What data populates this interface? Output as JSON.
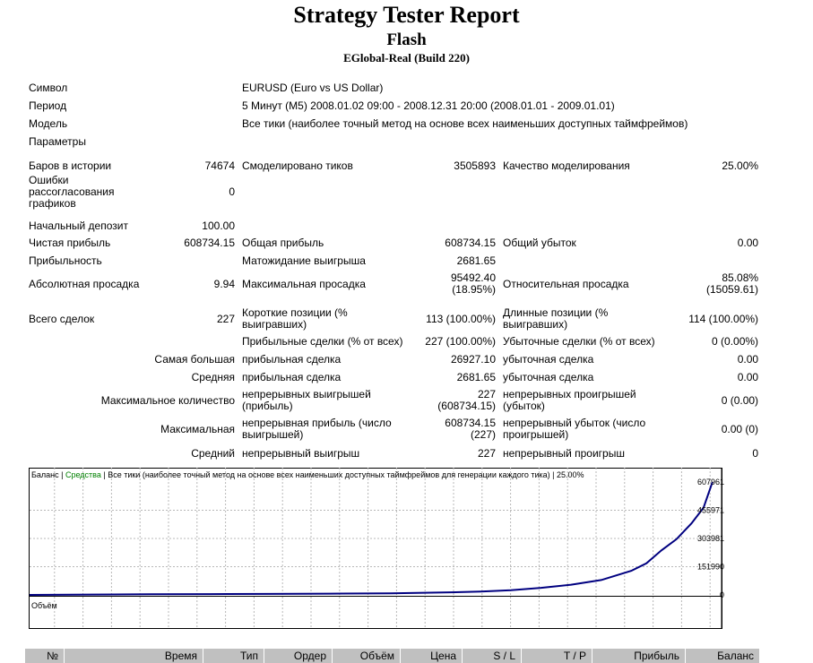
{
  "header": {
    "title": "Strategy Tester Report",
    "expert": "Flash",
    "server": "EGlobal-Real (Build 220)"
  },
  "summary": {
    "symbol_label": "Символ",
    "symbol": "EURUSD (Euro vs US Dollar)",
    "period_label": "Период",
    "period": "5 Минут (M5) 2008.01.02 09:00 - 2008.12.31 20:00 (2008.01.01 - 2009.01.01)",
    "model_label": "Модель",
    "model": "Все тики (наиболее точный метод на основе всех наименьших доступных таймфреймов)",
    "params_label": "Параметры"
  },
  "stats": {
    "bars_label": "Баров в истории",
    "bars": "74674",
    "ticks_label": "Смоделировано тиков",
    "ticks": "3505893",
    "quality_label": "Качество моделирования",
    "quality": "25.00%",
    "mismatch_label": "Ошибки рассогласования графиков",
    "mismatch": "0",
    "deposit_label": "Начальный депозит",
    "deposit": "100.00",
    "net_label": "Чистая прибыль",
    "net": "608734.15",
    "gross_profit_label": "Общая прибыль",
    "gross_profit": "608734.15",
    "gross_loss_label": "Общий убыток",
    "gross_loss": "0.00",
    "pf_label": "Прибыльность",
    "payoff_label": "Матожидание выигрыша",
    "payoff": "2681.65",
    "abs_dd_label": "Абсолютная просадка",
    "abs_dd": "9.94",
    "max_dd_label": "Максимальная просадка",
    "max_dd": "95492.40",
    "max_dd_pct": "(18.95%)",
    "rel_dd_label": "Относительная просадка",
    "rel_dd": "85.08%",
    "rel_dd_abs": "(15059.61)",
    "trades_label": "Всего сделок",
    "trades": "227",
    "short_label": "Короткие позиции (% выигравших)",
    "short": "113 (100.00%)",
    "long_label": "Длинные позиции (% выигравших)",
    "long": "114 (100.00%)",
    "profit_trades_label": "Прибыльные сделки (% от всех)",
    "profit_trades": "227 (100.00%)",
    "loss_trades_label": "Убыточные сделки (% от всех)",
    "loss_trades": "0 (0.00%)",
    "largest_label": "Самая большая",
    "largest_profit_label": "прибыльная сделка",
    "largest_profit": "26927.10",
    "largest_loss_label": "убыточная сделка",
    "largest_loss": "0.00",
    "average_label": "Средняя",
    "avg_profit_label": "прибыльная сделка",
    "avg_profit": "2681.65",
    "avg_loss_label": "убыточная сделка",
    "avg_loss": "0.00",
    "max_count_label": "Максимальное количество",
    "cons_wins_label": "непрерывных выигрышей (прибыль)",
    "cons_wins": "227 (608734.15)",
    "cons_losses_label": "непрерывных проигрышей (убыток)",
    "cons_losses": "0 (0.00)",
    "maximal_label": "Максимальная",
    "cons_profit_label": "непрерывная прибыль (число выигрышей)",
    "cons_profit": "608734.15 (227)",
    "cons_loss_label": "непрерывный убыток (число проигрышей)",
    "cons_loss": "0.00 (0)",
    "avg2_label": "Средний",
    "avg_wins_label": "непрерывный выигрыш",
    "avg_wins": "227",
    "avg_losses_label": "непрерывный проигрыш",
    "avg_losses": "0"
  },
  "chart_data": {
    "type": "line",
    "legend_balance": "Баланс",
    "legend_sep": " | ",
    "legend_equity": "Средства",
    "legend_rest": " | Все тики (наиболее точный метод на основе всех наименьших доступных таймфреймов для генерации каждого тика) | 25.00%",
    "volume_label": "Объём",
    "y_ticks": [
      "607961",
      "455971",
      "303981",
      "151990",
      "0"
    ],
    "x_ticks": [
      "0",
      "11",
      "20",
      "29",
      "39",
      "48",
      "58",
      "67",
      "77",
      "86",
      "95",
      "105",
      "114",
      "124",
      "133",
      "143",
      "152",
      "161",
      "171",
      "180",
      "190",
      "199",
      "208",
      "218",
      "227"
    ],
    "ylim": [
      0,
      607961
    ],
    "xlim": [
      0,
      230
    ],
    "balance_color": "#000080",
    "equity_color": "#008000",
    "series": [
      {
        "name": "Баланс",
        "x": [
          0,
          20,
          40,
          60,
          80,
          100,
          120,
          140,
          150,
          160,
          170,
          180,
          190,
          200,
          205,
          210,
          215,
          220,
          224,
          227
        ],
        "y": [
          100,
          2000,
          3500,
          4500,
          5500,
          6800,
          8500,
          14000,
          18000,
          25000,
          38000,
          55000,
          80000,
          130000,
          170000,
          240000,
          300000,
          385000,
          470000,
          608734
        ]
      }
    ]
  },
  "deals_table": {
    "columns": [
      "№",
      "Время",
      "Тип",
      "Ордер",
      "Объём",
      "Цена",
      "S / L",
      "T / P",
      "Прибыль",
      "Баланс"
    ]
  }
}
